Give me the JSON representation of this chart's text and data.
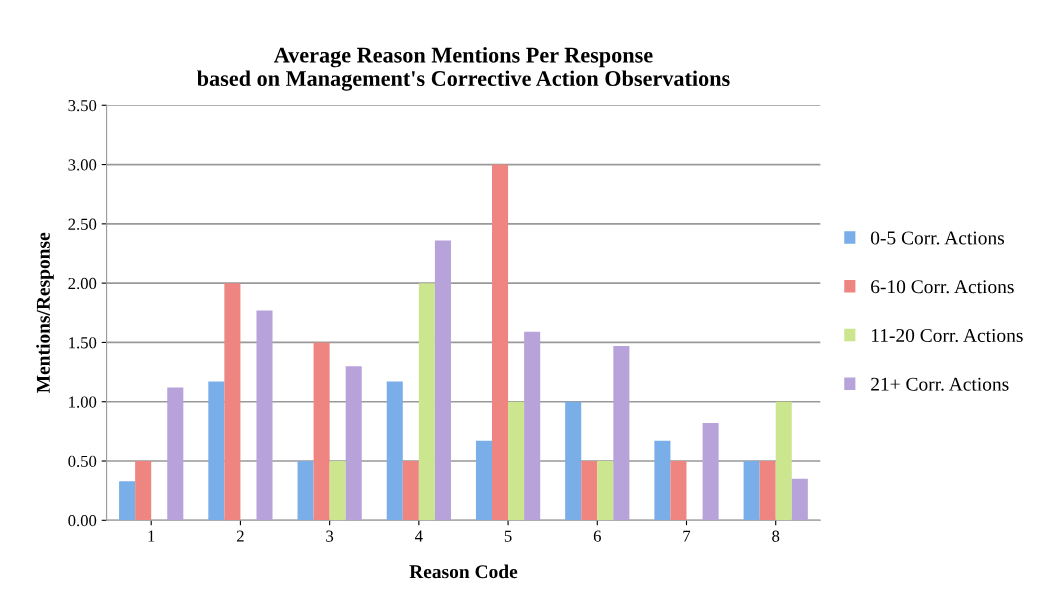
{
  "chart_data": {
    "type": "bar",
    "title": "Average Reason Mentions Per Response\nbased on Management's Corrective Action Observations",
    "xlabel": "Reason Code",
    "ylabel": "Mentions/Response",
    "categories": [
      "1",
      "2",
      "3",
      "4",
      "5",
      "6",
      "7",
      "8"
    ],
    "series": [
      {
        "name": "0-5 Corr. Actions",
        "color": "#7aaee8",
        "values": [
          0.33,
          1.17,
          0.5,
          1.17,
          0.67,
          1.0,
          0.67,
          0.5
        ]
      },
      {
        "name": "6-10 Corr. Actions",
        "color": "#ee8580",
        "values": [
          0.5,
          2.0,
          1.5,
          0.5,
          3.0,
          0.5,
          0.5,
          0.5
        ]
      },
      {
        "name": "11-20 Corr. Actions",
        "color": "#cce690",
        "values": [
          null,
          null,
          0.5,
          2.0,
          1.0,
          0.5,
          null,
          1.0
        ]
      },
      {
        "name": "21+ Corr. Actions",
        "color": "#b7a2da",
        "values": [
          1.12,
          1.77,
          1.3,
          2.36,
          1.59,
          1.47,
          0.82,
          0.35
        ]
      }
    ],
    "ylim": [
      0,
      3.5
    ],
    "yticks": [
      {
        "value": 0,
        "label": "0.00"
      },
      {
        "value": 0.5,
        "label": "0.50"
      },
      {
        "value": 1,
        "label": "1.00"
      },
      {
        "value": 1.5,
        "label": "1.50"
      },
      {
        "value": 2,
        "label": "2.00"
      },
      {
        "value": 2.5,
        "label": "2.50"
      },
      {
        "value": 3,
        "label": "3.00"
      },
      {
        "value": 3.5,
        "label": "3.50"
      }
    ],
    "grid": "y",
    "legend": "right"
  }
}
